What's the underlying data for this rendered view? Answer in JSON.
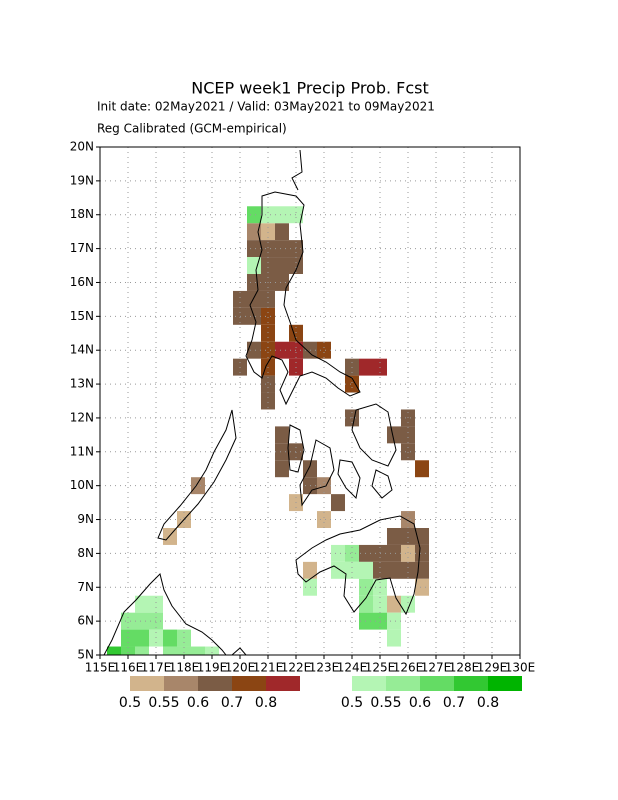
{
  "chart_data": {
    "type": "map",
    "title": "NCEP week1 Precip Prob. Fcst",
    "subtitle": [
      "Init date: 02May2021 / Valid: 03May2021 to 09May2021",
      "Reg Calibrated (GCM-empirical)"
    ],
    "xlim": [
      115,
      130
    ],
    "ylim": [
      5,
      20
    ],
    "xticks": [
      {
        "value": 115,
        "label": "115E"
      },
      {
        "value": 116,
        "label": "116E"
      },
      {
        "value": 117,
        "label": "117E"
      },
      {
        "value": 118,
        "label": "118E"
      },
      {
        "value": 119,
        "label": "119E"
      },
      {
        "value": 120,
        "label": "120E"
      },
      {
        "value": 121,
        "label": "121E"
      },
      {
        "value": 122,
        "label": "122E"
      },
      {
        "value": 123,
        "label": "123E"
      },
      {
        "value": 124,
        "label": "124E"
      },
      {
        "value": 125,
        "label": "125E"
      },
      {
        "value": 126,
        "label": "126E"
      },
      {
        "value": 127,
        "label": "127E"
      },
      {
        "value": 128,
        "label": "128E"
      },
      {
        "value": 129,
        "label": "129E"
      },
      {
        "value": 130,
        "label": "130E"
      }
    ],
    "yticks": [
      {
        "value": 5,
        "label": "5N"
      },
      {
        "value": 6,
        "label": "6N"
      },
      {
        "value": 7,
        "label": "7N"
      },
      {
        "value": 8,
        "label": "8N"
      },
      {
        "value": 9,
        "label": "9N"
      },
      {
        "value": 10,
        "label": "10N"
      },
      {
        "value": 11,
        "label": "11N"
      },
      {
        "value": 12,
        "label": "12N"
      },
      {
        "value": 13,
        "label": "13N"
      },
      {
        "value": 14,
        "label": "14N"
      },
      {
        "value": 15,
        "label": "15N"
      },
      {
        "value": 16,
        "label": "16N"
      },
      {
        "value": 17,
        "label": "17N"
      },
      {
        "value": 18,
        "label": "18N"
      },
      {
        "value": 19,
        "label": "19N"
      },
      {
        "value": 20,
        "label": "20N"
      }
    ],
    "grid": true,
    "dry_legend": {
      "values": [
        0.5,
        0.55,
        0.6,
        0.7,
        0.8
      ],
      "colors": [
        "#d2b48c",
        "#a8866a",
        "#7b5c45",
        "#8b4513",
        "#a0282a"
      ]
    },
    "wet_legend": {
      "values": [
        0.5,
        0.55,
        0.6,
        0.7,
        0.8
      ],
      "colors": [
        "#b4f5b4",
        "#96ec96",
        "#64dc64",
        "#32c832",
        "#00b400"
      ]
    },
    "dry_cells": [
      {
        "lon": 120.5,
        "lat": 17.5,
        "p": 0.55
      },
      {
        "lon": 121,
        "lat": 17.5,
        "p": 0.5
      },
      {
        "lon": 121.5,
        "lat": 17.5,
        "p": 0.6
      },
      {
        "lon": 120.5,
        "lat": 17,
        "p": 0.6
      },
      {
        "lon": 121,
        "lat": 17,
        "p": 0.6
      },
      {
        "lon": 121.5,
        "lat": 17,
        "p": 0.6
      },
      {
        "lon": 122,
        "lat": 17,
        "p": 0.6
      },
      {
        "lon": 121,
        "lat": 16.5,
        "p": 0.6
      },
      {
        "lon": 121.5,
        "lat": 16.5,
        "p": 0.6
      },
      {
        "lon": 122,
        "lat": 16.5,
        "p": 0.6
      },
      {
        "lon": 120.5,
        "lat": 16,
        "p": 0.6
      },
      {
        "lon": 121,
        "lat": 16,
        "p": 0.6
      },
      {
        "lon": 121.5,
        "lat": 16,
        "p": 0.6
      },
      {
        "lon": 120,
        "lat": 15.5,
        "p": 0.6
      },
      {
        "lon": 120.5,
        "lat": 15.5,
        "p": 0.6
      },
      {
        "lon": 121,
        "lat": 15.5,
        "p": 0.6
      },
      {
        "lon": 120,
        "lat": 15,
        "p": 0.6
      },
      {
        "lon": 120.5,
        "lat": 15,
        "p": 0.6
      },
      {
        "lon": 121,
        "lat": 15,
        "p": 0.7
      },
      {
        "lon": 121,
        "lat": 14.5,
        "p": 0.7
      },
      {
        "lon": 122,
        "lat": 14.5,
        "p": 0.7
      },
      {
        "lon": 120.5,
        "lat": 14,
        "p": 0.6
      },
      {
        "lon": 121,
        "lat": 14,
        "p": 0.7
      },
      {
        "lon": 121.5,
        "lat": 14,
        "p": 0.8
      },
      {
        "lon": 122,
        "lat": 14,
        "p": 0.8
      },
      {
        "lon": 122.5,
        "lat": 14,
        "p": 0.6
      },
      {
        "lon": 123,
        "lat": 14,
        "p": 0.7
      },
      {
        "lon": 120,
        "lat": 13.5,
        "p": 0.6
      },
      {
        "lon": 121,
        "lat": 13.5,
        "p": 0.7
      },
      {
        "lon": 122,
        "lat": 13.5,
        "p": 0.8
      },
      {
        "lon": 124,
        "lat": 13.5,
        "p": 0.6
      },
      {
        "lon": 124.5,
        "lat": 13.5,
        "p": 0.8
      },
      {
        "lon": 125,
        "lat": 13.5,
        "p": 0.8
      },
      {
        "lon": 121,
        "lat": 13,
        "p": 0.6
      },
      {
        "lon": 124,
        "lat": 13,
        "p": 0.7
      },
      {
        "lon": 121,
        "lat": 12.5,
        "p": 0.6
      },
      {
        "lon": 124,
        "lat": 12,
        "p": 0.6
      },
      {
        "lon": 126,
        "lat": 12,
        "p": 0.6
      },
      {
        "lon": 121.5,
        "lat": 11.5,
        "p": 0.6
      },
      {
        "lon": 125.5,
        "lat": 11.5,
        "p": 0.6
      },
      {
        "lon": 126,
        "lat": 11.5,
        "p": 0.6
      },
      {
        "lon": 121.5,
        "lat": 11,
        "p": 0.6
      },
      {
        "lon": 122,
        "lat": 11,
        "p": 0.6
      },
      {
        "lon": 126,
        "lat": 11,
        "p": 0.6
      },
      {
        "lon": 121.5,
        "lat": 10.5,
        "p": 0.6
      },
      {
        "lon": 122.5,
        "lat": 10.5,
        "p": 0.6
      },
      {
        "lon": 126.5,
        "lat": 10.5,
        "p": 0.7
      },
      {
        "lon": 122.5,
        "lat": 10,
        "p": 0.6
      },
      {
        "lon": 123,
        "lat": 10,
        "p": 0.55
      },
      {
        "lon": 118.5,
        "lat": 10,
        "p": 0.55
      },
      {
        "lon": 123.5,
        "lat": 9.5,
        "p": 0.6
      },
      {
        "lon": 122,
        "lat": 9.5,
        "p": 0.5
      },
      {
        "lon": 123,
        "lat": 9,
        "p": 0.5
      },
      {
        "lon": 118,
        "lat": 9,
        "p": 0.5
      },
      {
        "lon": 126,
        "lat": 9,
        "p": 0.55
      },
      {
        "lon": 125.5,
        "lat": 8.5,
        "p": 0.6
      },
      {
        "lon": 126,
        "lat": 8.5,
        "p": 0.6
      },
      {
        "lon": 126.5,
        "lat": 8.5,
        "p": 0.6
      },
      {
        "lon": 117.5,
        "lat": 8.5,
        "p": 0.5
      },
      {
        "lon": 124.5,
        "lat": 8,
        "p": 0.6
      },
      {
        "lon": 125,
        "lat": 8,
        "p": 0.6
      },
      {
        "lon": 125.5,
        "lat": 8,
        "p": 0.6
      },
      {
        "lon": 126,
        "lat": 8,
        "p": 0.5
      },
      {
        "lon": 126.5,
        "lat": 8,
        "p": 0.6
      },
      {
        "lon": 125,
        "lat": 7.5,
        "p": 0.6
      },
      {
        "lon": 125.5,
        "lat": 7.5,
        "p": 0.6
      },
      {
        "lon": 126,
        "lat": 7.5,
        "p": 0.6
      },
      {
        "lon": 126.5,
        "lat": 7.5,
        "p": 0.6
      },
      {
        "lon": 122.5,
        "lat": 7.5,
        "p": 0.5
      },
      {
        "lon": 126.5,
        "lat": 7,
        "p": 0.5
      },
      {
        "lon": 125.5,
        "lat": 6.5,
        "p": 0.5
      }
    ],
    "wet_cells": [
      {
        "lon": 120.5,
        "lat": 18,
        "p": 0.6
      },
      {
        "lon": 121,
        "lat": 18,
        "p": 0.5
      },
      {
        "lon": 121.5,
        "lat": 18,
        "p": 0.5
      },
      {
        "lon": 122,
        "lat": 18,
        "p": 0.5
      },
      {
        "lon": 120.5,
        "lat": 16.5,
        "p": 0.5
      },
      {
        "lon": 123.5,
        "lat": 8,
        "p": 0.5
      },
      {
        "lon": 124,
        "lat": 8,
        "p": 0.55
      },
      {
        "lon": 123.5,
        "lat": 7.5,
        "p": 0.5
      },
      {
        "lon": 124,
        "lat": 7.5,
        "p": 0.5
      },
      {
        "lon": 124.5,
        "lat": 7.5,
        "p": 0.5
      },
      {
        "lon": 124.5,
        "lat": 7,
        "p": 0.55
      },
      {
        "lon": 125,
        "lat": 7,
        "p": 0.5
      },
      {
        "lon": 122.5,
        "lat": 7,
        "p": 0.5
      },
      {
        "lon": 124.5,
        "lat": 6.5,
        "p": 0.55
      },
      {
        "lon": 125,
        "lat": 6.5,
        "p": 0.5
      },
      {
        "lon": 126,
        "lat": 6.5,
        "p": 0.5
      },
      {
        "lon": 124.5,
        "lat": 6,
        "p": 0.6
      },
      {
        "lon": 125,
        "lat": 6,
        "p": 0.6
      },
      {
        "lon": 125.5,
        "lat": 6,
        "p": 0.5
      },
      {
        "lon": 125.5,
        "lat": 5.5,
        "p": 0.5
      },
      {
        "lon": 116.5,
        "lat": 6.5,
        "p": 0.5
      },
      {
        "lon": 117,
        "lat": 6.5,
        "p": 0.5
      },
      {
        "lon": 116,
        "lat": 6,
        "p": 0.55
      },
      {
        "lon": 116.5,
        "lat": 6,
        "p": 0.55
      },
      {
        "lon": 117,
        "lat": 6,
        "p": 0.55
      },
      {
        "lon": 116,
        "lat": 5.5,
        "p": 0.6
      },
      {
        "lon": 116.5,
        "lat": 5.5,
        "p": 0.6
      },
      {
        "lon": 117,
        "lat": 5.5,
        "p": 0.5
      },
      {
        "lon": 117.5,
        "lat": 5.5,
        "p": 0.6
      },
      {
        "lon": 118,
        "lat": 5.5,
        "p": 0.55
      },
      {
        "lon": 115.5,
        "lat": 5,
        "p": 0.7
      },
      {
        "lon": 116,
        "lat": 5,
        "p": 0.6
      },
      {
        "lon": 116.5,
        "lat": 5,
        "p": 0.55
      },
      {
        "lon": 117.5,
        "lat": 5,
        "p": 0.55
      },
      {
        "lon": 118,
        "lat": 5,
        "p": 0.55
      },
      {
        "lon": 118.5,
        "lat": 5,
        "p": 0.55
      },
      {
        "lon": 119,
        "lat": 5,
        "p": 0.5
      }
    ]
  }
}
